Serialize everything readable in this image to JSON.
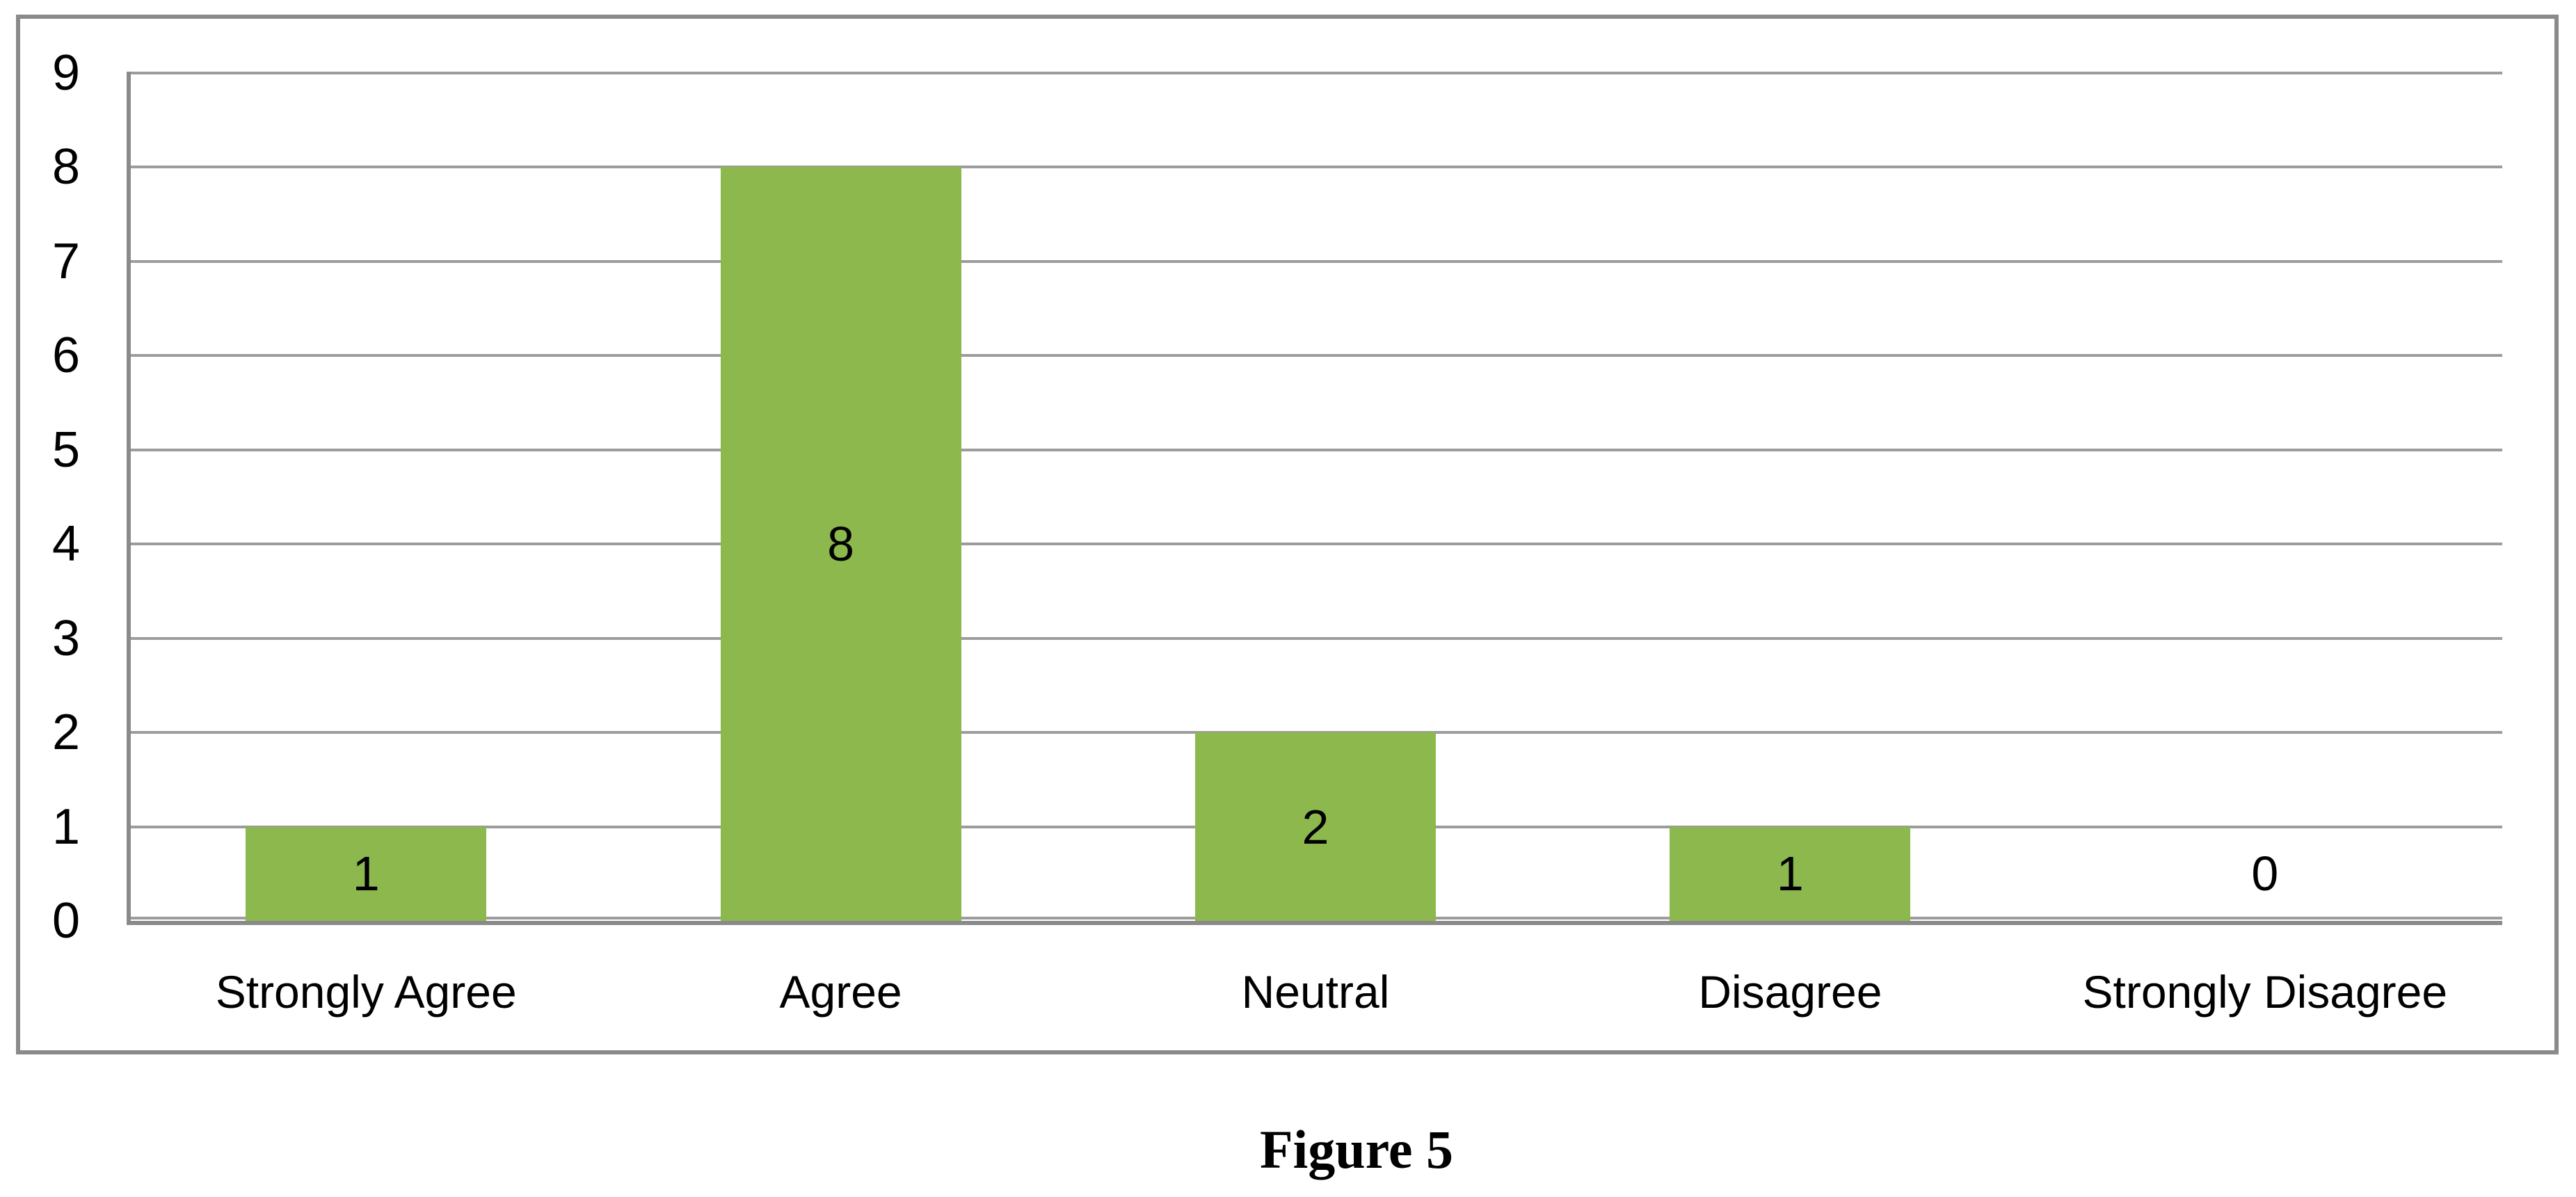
{
  "caption": {
    "text": "Figure 5"
  },
  "colors": {
    "bar_fill": "#8cb84e",
    "gridline": "#9c9c9c",
    "axis_line": "#8a8a8a",
    "frame_border": "#8a8a8a",
    "text": "#000000",
    "background": "#ffffff"
  },
  "chart_data": {
    "type": "bar",
    "categories": [
      "Strongly Agree",
      "Agree",
      "Neutral",
      "Disagree",
      "Strongly Disagree"
    ],
    "values": [
      1,
      8,
      2,
      1,
      0
    ],
    "data_labels": [
      "1",
      "8",
      "2",
      "1",
      "0"
    ],
    "title": "",
    "xlabel": "",
    "ylabel": "",
    "ylim": [
      0,
      9
    ],
    "yticks": [
      0,
      1,
      2,
      3,
      4,
      5,
      6,
      7,
      8,
      9
    ],
    "grid": "horizontal-major",
    "legend": "none",
    "data_label_position": "center",
    "caption_below": "Figure 5"
  }
}
